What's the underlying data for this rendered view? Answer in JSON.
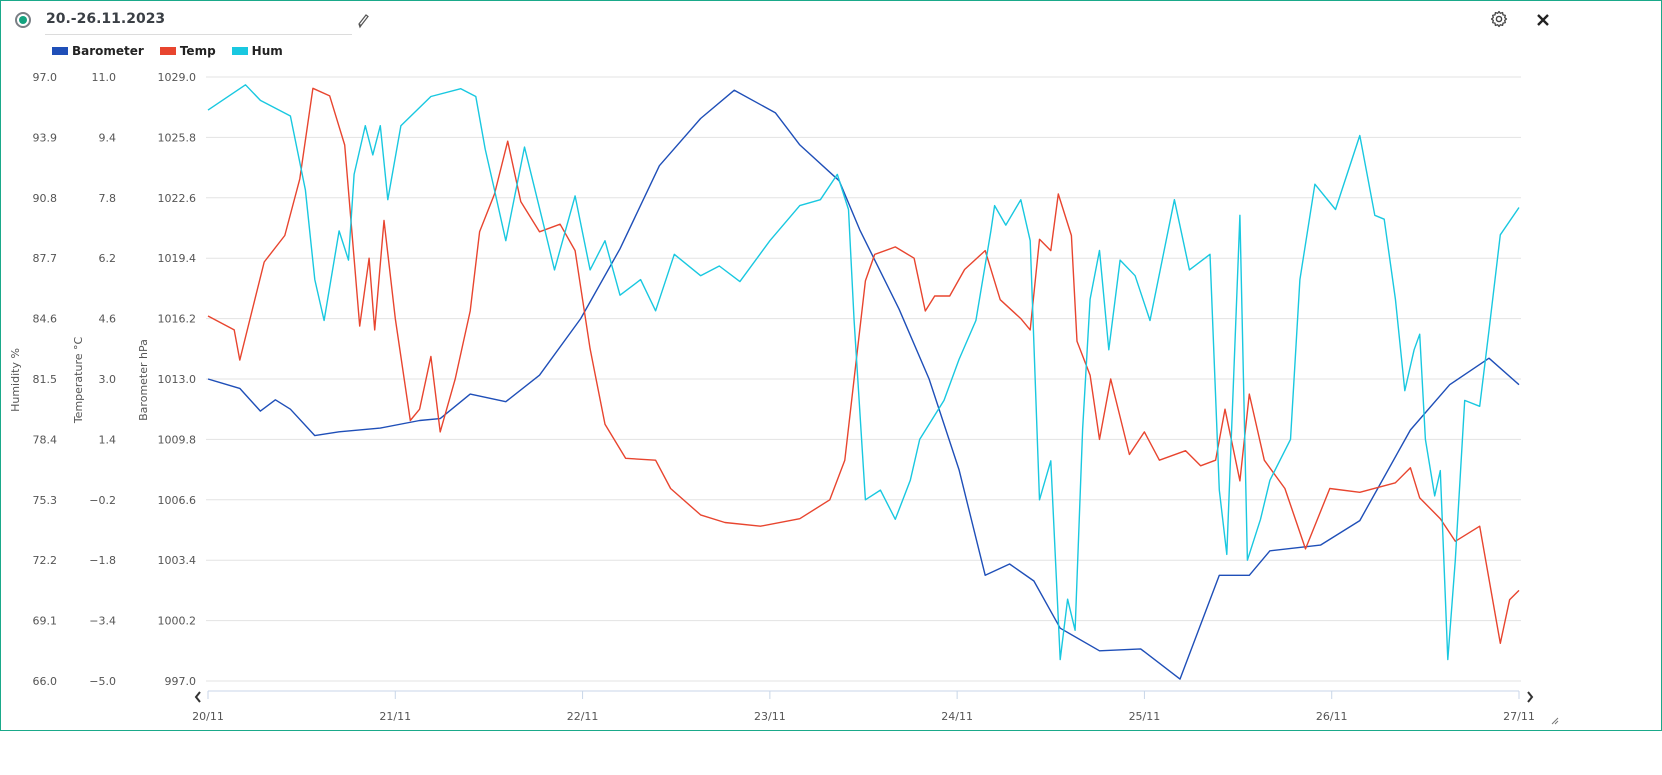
{
  "header": {
    "title": "20.-26.11.2023"
  },
  "colors": {
    "barometer": "#1f4fb8",
    "temp": "#e8452f",
    "hum": "#19c8e0",
    "accent": "#14a37f"
  },
  "chart_data": {
    "type": "line",
    "title": "20.-26.11.2023",
    "xlabel": "",
    "x_unit": "days since 20/11",
    "xlim": [
      0,
      7
    ],
    "x_tick_labels": [
      "20/11",
      "21/11",
      "22/11",
      "23/11",
      "24/11",
      "25/11",
      "26/11",
      "27/11"
    ],
    "legend": [
      "Barometer",
      "Temp",
      "Hum"
    ],
    "legend_position": "top-left",
    "grid": true,
    "axes": [
      {
        "id": "hum",
        "label": "Humidity %",
        "ylim": [
          66.0,
          97.0
        ],
        "ticks": [
          "97.0",
          "93.9",
          "90.8",
          "87.7",
          "84.6",
          "81.5",
          "78.4",
          "75.3",
          "72.2",
          "69.1",
          "66.0"
        ]
      },
      {
        "id": "temp",
        "label": "Temperature °C",
        "ylim": [
          -5.0,
          11.0
        ],
        "ticks": [
          "11.0",
          "9.4",
          "7.8",
          "6.2",
          "4.6",
          "3.0",
          "1.4",
          "−0.2",
          "−1.8",
          "−3.4",
          "−5.0"
        ]
      },
      {
        "id": "baro",
        "label": "Barometer hPa",
        "ylim": [
          997.0,
          1029.0
        ],
        "ticks": [
          "1029.0",
          "1025.8",
          "1022.6",
          "1019.4",
          "1016.2",
          "1013.0",
          "1009.8",
          "1006.6",
          "1003.4",
          "1000.2",
          "997.0"
        ]
      }
    ],
    "series": [
      {
        "name": "Barometer",
        "axis": "baro",
        "color": "#1f4fb8",
        "points": [
          [
            0,
            1013.0
          ],
          [
            0.17,
            1012.5
          ],
          [
            0.28,
            1011.3
          ],
          [
            0.36,
            1011.9
          ],
          [
            0.44,
            1011.4
          ],
          [
            0.57,
            1010.0
          ],
          [
            0.7,
            1010.2
          ],
          [
            0.92,
            1010.4
          ],
          [
            1.13,
            1010.8
          ],
          [
            1.24,
            1010.9
          ],
          [
            1.4,
            1012.2
          ],
          [
            1.59,
            1011.8
          ],
          [
            1.77,
            1013.2
          ],
          [
            1.99,
            1016.2
          ],
          [
            2.2,
            1019.9
          ],
          [
            2.41,
            1024.3
          ],
          [
            2.63,
            1026.8
          ],
          [
            2.81,
            1028.3
          ],
          [
            3.03,
            1027.1
          ],
          [
            3.16,
            1025.4
          ],
          [
            3.37,
            1023.5
          ],
          [
            3.48,
            1020.9
          ],
          [
            3.69,
            1016.7
          ],
          [
            3.85,
            1013.0
          ],
          [
            4.01,
            1008.2
          ],
          [
            4.15,
            1002.6
          ],
          [
            4.28,
            1003.2
          ],
          [
            4.41,
            1002.3
          ],
          [
            4.55,
            999.8
          ],
          [
            4.76,
            998.6
          ],
          [
            4.98,
            998.7
          ],
          [
            5.19,
            997.1
          ],
          [
            5.4,
            1002.6
          ],
          [
            5.56,
            1002.6
          ],
          [
            5.67,
            1003.9
          ],
          [
            5.94,
            1004.2
          ],
          [
            6.15,
            1005.5
          ],
          [
            6.42,
            1010.3
          ],
          [
            6.63,
            1012.7
          ],
          [
            6.84,
            1014.1
          ],
          [
            7.0,
            1012.7
          ]
        ]
      },
      {
        "name": "Temp",
        "axis": "temp",
        "color": "#e8452f",
        "points": [
          [
            0,
            4.67
          ],
          [
            0.14,
            4.3
          ],
          [
            0.17,
            3.5
          ],
          [
            0.25,
            5.1
          ],
          [
            0.3,
            6.1
          ],
          [
            0.41,
            6.8
          ],
          [
            0.49,
            8.3
          ],
          [
            0.56,
            10.7
          ],
          [
            0.65,
            10.5
          ],
          [
            0.73,
            9.2
          ],
          [
            0.81,
            4.4
          ],
          [
            0.86,
            6.2
          ],
          [
            0.89,
            4.3
          ],
          [
            0.94,
            7.2
          ],
          [
            1.0,
            4.6
          ],
          [
            1.08,
            1.9
          ],
          [
            1.13,
            2.2
          ],
          [
            1.19,
            3.6
          ],
          [
            1.24,
            1.6
          ],
          [
            1.32,
            3.0
          ],
          [
            1.4,
            4.8
          ],
          [
            1.45,
            6.9
          ],
          [
            1.53,
            7.9
          ],
          [
            1.6,
            9.3
          ],
          [
            1.67,
            7.7
          ],
          [
            1.77,
            6.9
          ],
          [
            1.88,
            7.1
          ],
          [
            1.96,
            6.4
          ],
          [
            2.04,
            3.8
          ],
          [
            2.12,
            1.8
          ],
          [
            2.23,
            0.9
          ],
          [
            2.39,
            0.85
          ],
          [
            2.47,
            0.1
          ],
          [
            2.63,
            -0.6
          ],
          [
            2.76,
            -0.8
          ],
          [
            2.95,
            -0.9
          ],
          [
            3.16,
            -0.7
          ],
          [
            3.32,
            -0.2
          ],
          [
            3.4,
            0.85
          ],
          [
            3.45,
            3.0
          ],
          [
            3.51,
            5.6
          ],
          [
            3.56,
            6.3
          ],
          [
            3.67,
            6.5
          ],
          [
            3.77,
            6.2
          ],
          [
            3.83,
            4.8
          ],
          [
            3.88,
            5.2
          ],
          [
            3.96,
            5.2
          ],
          [
            4.04,
            5.9
          ],
          [
            4.15,
            6.4
          ],
          [
            4.23,
            5.1
          ],
          [
            4.34,
            4.6
          ],
          [
            4.39,
            4.3
          ],
          [
            4.44,
            6.7
          ],
          [
            4.5,
            6.4
          ],
          [
            4.54,
            7.9
          ],
          [
            4.61,
            6.8
          ],
          [
            4.64,
            4.0
          ],
          [
            4.71,
            3.1
          ],
          [
            4.76,
            1.4
          ],
          [
            4.82,
            3.0
          ],
          [
            4.92,
            1.0
          ],
          [
            5.0,
            1.6
          ],
          [
            5.08,
            0.85
          ],
          [
            5.22,
            1.1
          ],
          [
            5.3,
            0.7
          ],
          [
            5.38,
            0.85
          ],
          [
            5.43,
            2.2
          ],
          [
            5.51,
            0.3
          ],
          [
            5.56,
            2.6
          ],
          [
            5.64,
            0.85
          ],
          [
            5.75,
            0.1
          ],
          [
            5.86,
            -1.5
          ],
          [
            5.99,
            0.1
          ],
          [
            6.15,
            0.0
          ],
          [
            6.34,
            0.25
          ],
          [
            6.42,
            0.65
          ],
          [
            6.47,
            -0.15
          ],
          [
            6.58,
            -0.7
          ],
          [
            6.66,
            -1.3
          ],
          [
            6.79,
            -0.9
          ],
          [
            6.9,
            -4.0
          ],
          [
            6.95,
            -2.85
          ],
          [
            7.0,
            -2.6
          ]
        ]
      },
      {
        "name": "Hum",
        "axis": "hum",
        "color": "#19c8e0",
        "points": [
          [
            0,
            95.3
          ],
          [
            0.2,
            96.6
          ],
          [
            0.28,
            95.8
          ],
          [
            0.44,
            95.0
          ],
          [
            0.52,
            91.2
          ],
          [
            0.57,
            86.6
          ],
          [
            0.62,
            84.5
          ],
          [
            0.7,
            89.1
          ],
          [
            0.75,
            87.6
          ],
          [
            0.78,
            92.0
          ],
          [
            0.84,
            94.5
          ],
          [
            0.88,
            93.0
          ],
          [
            0.92,
            94.5
          ],
          [
            0.96,
            90.7
          ],
          [
            1.03,
            94.5
          ],
          [
            1.19,
            96.0
          ],
          [
            1.35,
            96.4
          ],
          [
            1.43,
            96.0
          ],
          [
            1.48,
            93.3
          ],
          [
            1.53,
            91.2
          ],
          [
            1.59,
            88.6
          ],
          [
            1.69,
            93.4
          ],
          [
            1.8,
            89.1
          ],
          [
            1.85,
            87.1
          ],
          [
            1.96,
            90.9
          ],
          [
            2.04,
            87.1
          ],
          [
            2.12,
            88.6
          ],
          [
            2.2,
            85.8
          ],
          [
            2.31,
            86.6
          ],
          [
            2.39,
            85.0
          ],
          [
            2.49,
            87.9
          ],
          [
            2.63,
            86.8
          ],
          [
            2.73,
            87.3
          ],
          [
            2.84,
            86.5
          ],
          [
            3.0,
            88.6
          ],
          [
            3.16,
            90.4
          ],
          [
            3.27,
            90.7
          ],
          [
            3.36,
            92.0
          ],
          [
            3.42,
            90.2
          ],
          [
            3.45,
            84.5
          ],
          [
            3.51,
            75.3
          ],
          [
            3.59,
            75.8
          ],
          [
            3.67,
            74.3
          ],
          [
            3.75,
            76.3
          ],
          [
            3.8,
            78.4
          ],
          [
            3.93,
            80.4
          ],
          [
            4.01,
            82.5
          ],
          [
            4.1,
            84.5
          ],
          [
            4.18,
            89.1
          ],
          [
            4.2,
            90.4
          ],
          [
            4.26,
            89.4
          ],
          [
            4.34,
            90.7
          ],
          [
            4.39,
            88.6
          ],
          [
            4.44,
            75.3
          ],
          [
            4.5,
            77.3
          ],
          [
            4.55,
            67.1
          ],
          [
            4.59,
            70.2
          ],
          [
            4.63,
            68.6
          ],
          [
            4.67,
            78.9
          ],
          [
            4.71,
            85.6
          ],
          [
            4.76,
            88.1
          ],
          [
            4.81,
            83.0
          ],
          [
            4.87,
            87.6
          ],
          [
            4.95,
            86.8
          ],
          [
            5.03,
            84.5
          ],
          [
            5.16,
            90.7
          ],
          [
            5.24,
            87.1
          ],
          [
            5.35,
            87.9
          ],
          [
            5.4,
            75.8
          ],
          [
            5.44,
            72.5
          ],
          [
            5.51,
            89.9
          ],
          [
            5.55,
            72.2
          ],
          [
            5.62,
            74.3
          ],
          [
            5.67,
            76.3
          ],
          [
            5.78,
            78.4
          ],
          [
            5.83,
            86.6
          ],
          [
            5.91,
            91.5
          ],
          [
            6.02,
            90.2
          ],
          [
            6.15,
            94.0
          ],
          [
            6.23,
            89.9
          ],
          [
            6.28,
            89.7
          ],
          [
            6.34,
            85.6
          ],
          [
            6.39,
            80.9
          ],
          [
            6.44,
            83.0
          ],
          [
            6.47,
            83.8
          ],
          [
            6.5,
            78.4
          ],
          [
            6.55,
            75.5
          ],
          [
            6.58,
            76.8
          ],
          [
            6.62,
            67.1
          ],
          [
            6.66,
            72.2
          ],
          [
            6.71,
            80.4
          ],
          [
            6.79,
            80.1
          ],
          [
            6.84,
            84.0
          ],
          [
            6.9,
            88.9
          ],
          [
            7.0,
            90.3
          ]
        ]
      }
    ]
  }
}
